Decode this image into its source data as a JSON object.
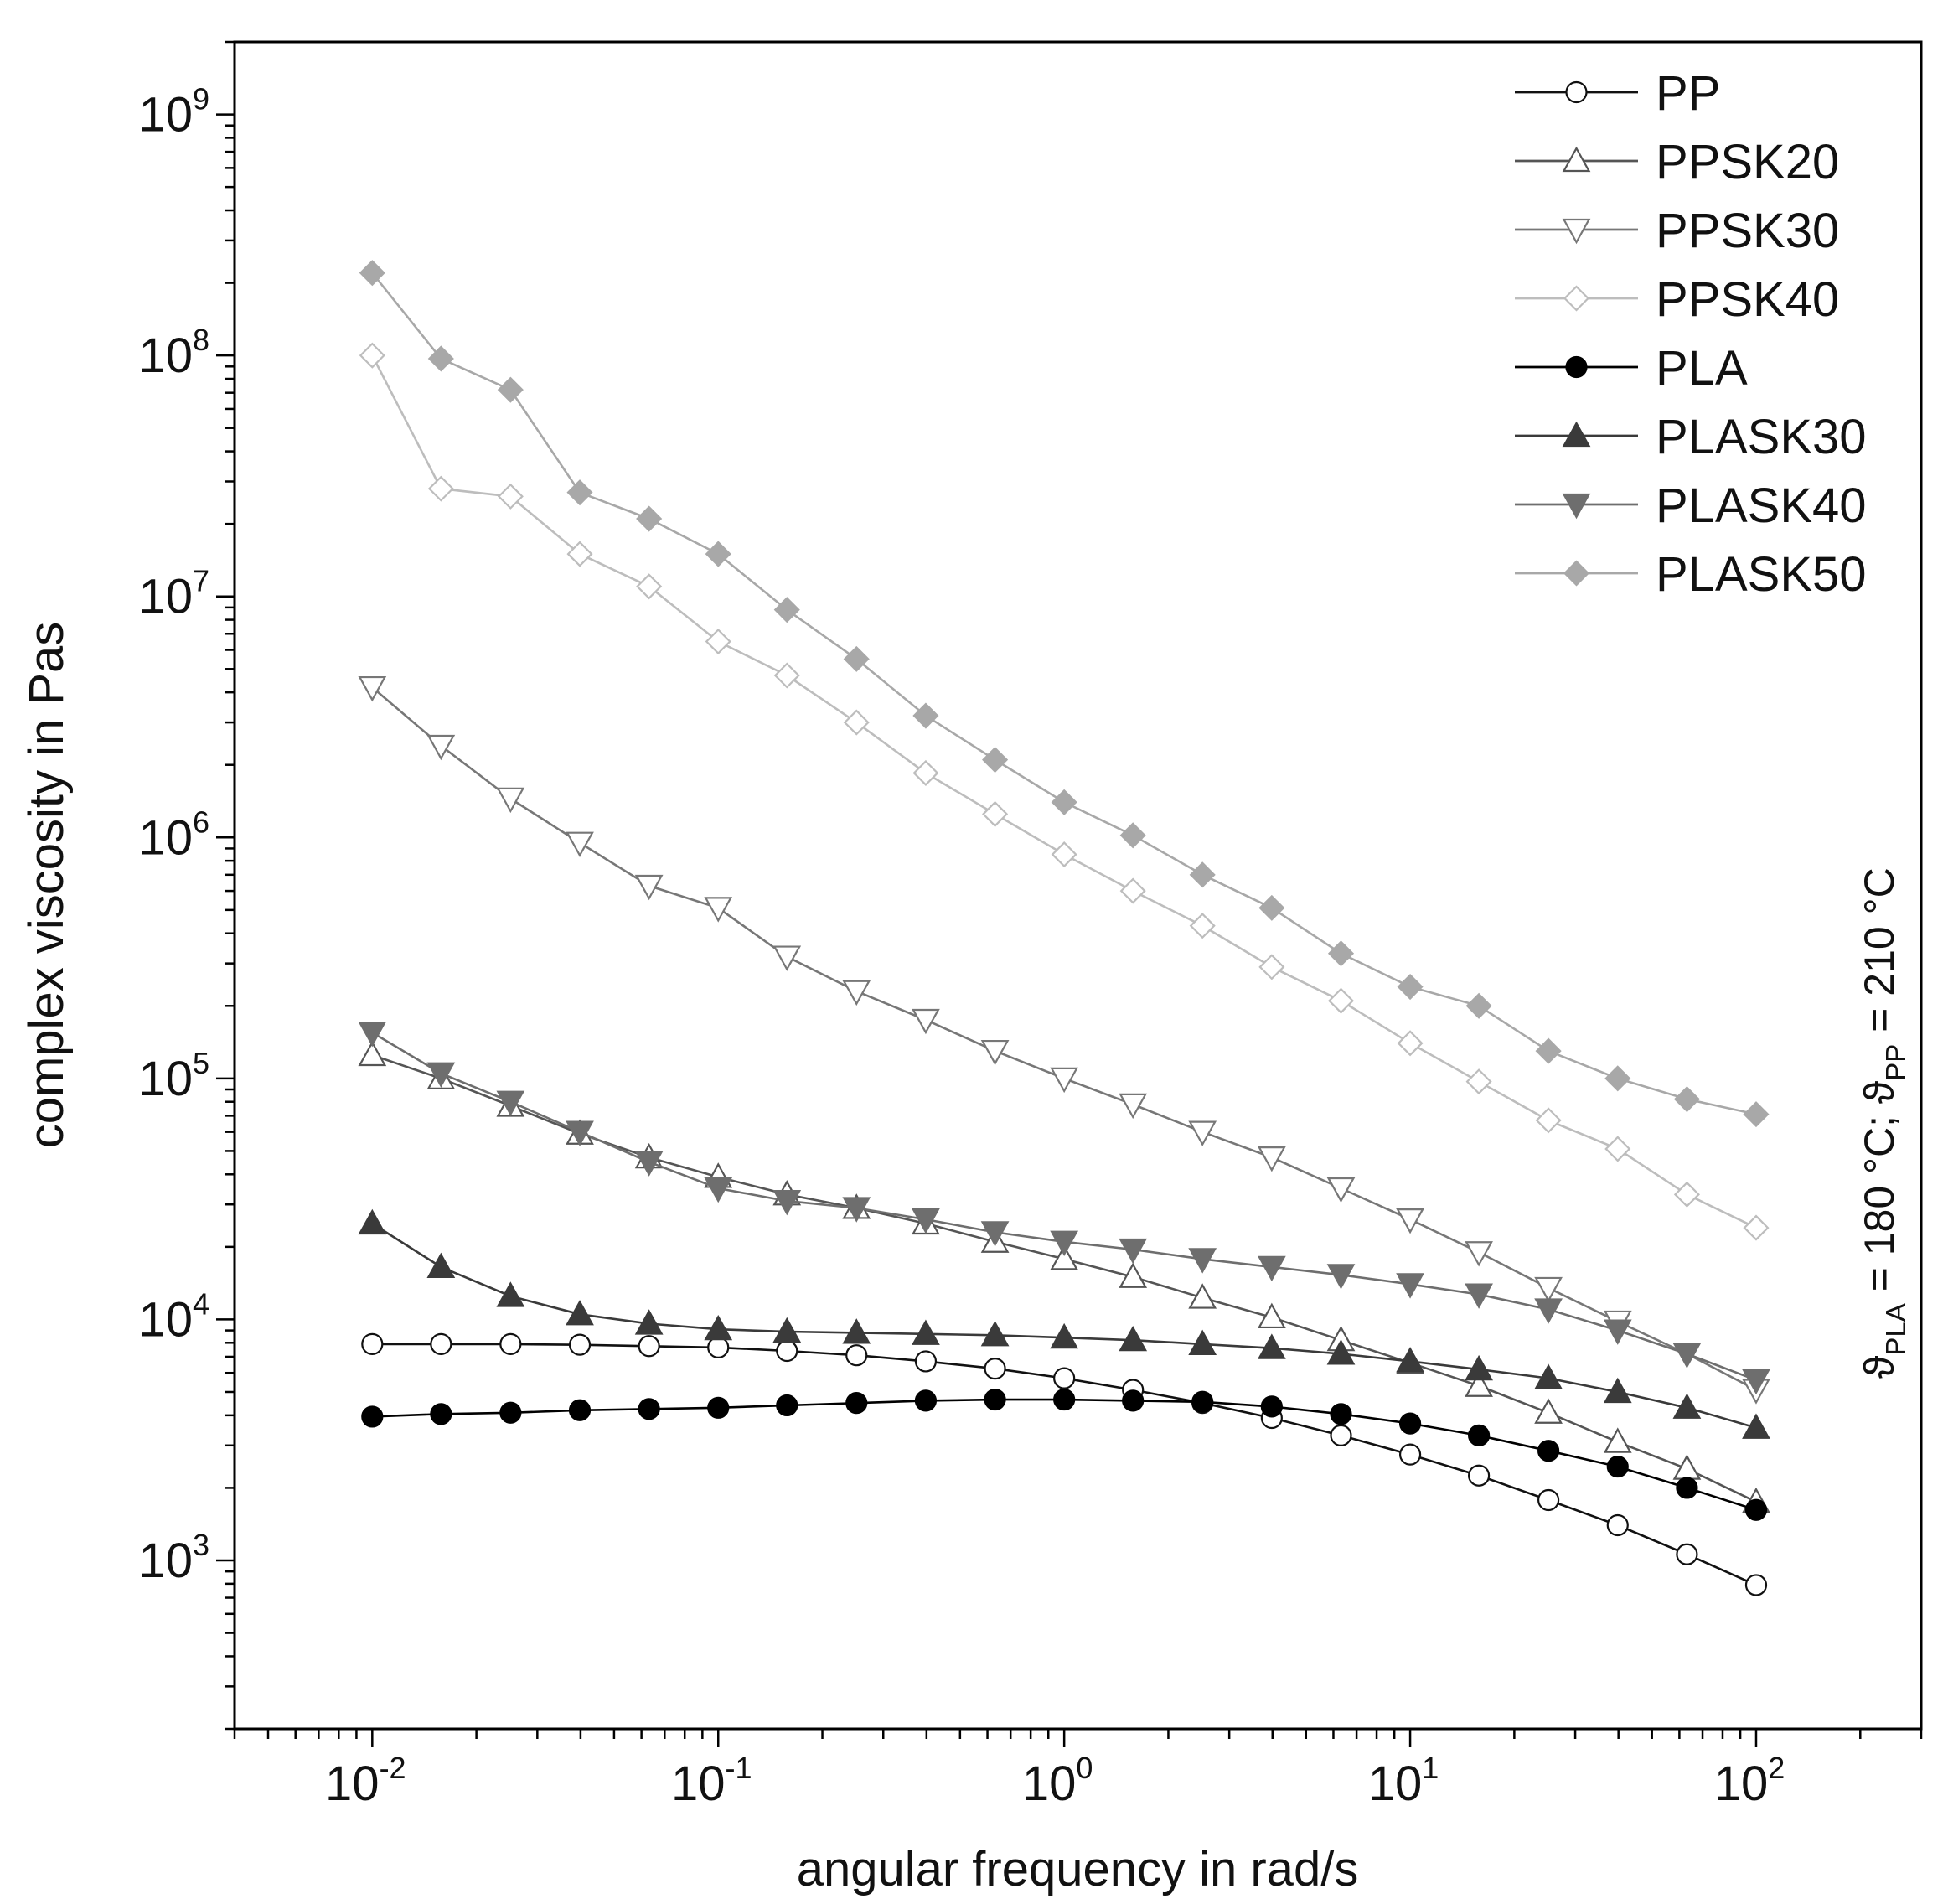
{
  "chart_data": {
    "type": "line",
    "xscale": "log",
    "yscale": "log",
    "xlabel": "angular frequency in rad/s",
    "ylabel": "complex viscosity in Pas",
    "xlim": [
      0.004,
      300
    ],
    "ylim": [
      200,
      2000000000
    ],
    "x_tick_labels": [
      {
        "base": "10",
        "exp": "-2",
        "value": 0.01
      },
      {
        "base": "10",
        "exp": "-1",
        "value": 0.1
      },
      {
        "base": "10",
        "exp": "0",
        "value": 1
      },
      {
        "base": "10",
        "exp": "1",
        "value": 10
      },
      {
        "base": "10",
        "exp": "2",
        "value": 100
      }
    ],
    "y_tick_labels": [
      {
        "base": "10",
        "exp": "3",
        "value": 1000
      },
      {
        "base": "10",
        "exp": "4",
        "value": 10000
      },
      {
        "base": "10",
        "exp": "5",
        "value": 100000
      },
      {
        "base": "10",
        "exp": "6",
        "value": 1000000
      },
      {
        "base": "10",
        "exp": "7",
        "value": 10000000
      },
      {
        "base": "10",
        "exp": "8",
        "value": 100000000
      },
      {
        "base": "10",
        "exp": "9",
        "value": 1000000000
      }
    ],
    "annotation": {
      "symbol": "ϑ",
      "sub1": "PLA",
      "part1": " = 180 °C; ",
      "sub2": "PP",
      "part2": " = 210 °C"
    },
    "legend_position": "top-right",
    "x": [
      0.01,
      0.0158,
      0.0251,
      0.0398,
      0.0631,
      0.1,
      0.158,
      0.251,
      0.398,
      0.631,
      1,
      1.58,
      2.51,
      3.98,
      6.31,
      10,
      15.8,
      25.1,
      39.8,
      63.1,
      100
    ],
    "series": [
      {
        "name": "PP",
        "marker": "circle",
        "filled": false,
        "color": "#111111",
        "values": [
          7900,
          7900,
          7900,
          7850,
          7750,
          7650,
          7400,
          7100,
          6700,
          6250,
          5700,
          5100,
          4500,
          3900,
          3300,
          2750,
          2250,
          1780,
          1400,
          1060,
          790
        ]
      },
      {
        "name": "PPSK20",
        "marker": "triangle-up",
        "filled": false,
        "color": "#555555",
        "values": [
          125000,
          100000,
          77000,
          59000,
          47000,
          39000,
          33000,
          29000,
          25000,
          21000,
          17800,
          15000,
          12300,
          10200,
          8200,
          6600,
          5300,
          4100,
          3100,
          2400,
          1750
        ]
      },
      {
        "name": "PPSK30",
        "marker": "triangle-down",
        "filled": false,
        "color": "#777777",
        "values": [
          4200000,
          2400000,
          1450000,
          950000,
          630000,
          510000,
          320000,
          230000,
          175000,
          130000,
          100000,
          78000,
          60000,
          47000,
          35000,
          26000,
          19000,
          13500,
          9800,
          7200,
          5100
        ]
      },
      {
        "name": "PPSK40",
        "marker": "diamond",
        "filled": false,
        "color": "#bdbdbd",
        "values": [
          100000000,
          28000000,
          26000000,
          15000000,
          11000000,
          6500000,
          4700000,
          3000000,
          1850000,
          1250000,
          850000,
          600000,
          430000,
          290000,
          210000,
          140000,
          97000,
          67000,
          51000,
          33000,
          24000
        ]
      },
      {
        "name": "PLA",
        "marker": "circle",
        "filled": true,
        "color": "#000000",
        "values": [
          3950,
          4050,
          4100,
          4200,
          4250,
          4300,
          4400,
          4500,
          4600,
          4650,
          4650,
          4600,
          4550,
          4350,
          4050,
          3700,
          3300,
          2850,
          2450,
          2000,
          1620
        ]
      },
      {
        "name": "PLASK30",
        "marker": "triangle-up",
        "filled": true,
        "color": "#3a3a3a",
        "values": [
          25000,
          16500,
          12500,
          10500,
          9600,
          9100,
          8900,
          8800,
          8700,
          8600,
          8400,
          8200,
          7900,
          7600,
          7200,
          6700,
          6200,
          5700,
          5000,
          4300,
          3550
        ]
      },
      {
        "name": "PLASK40",
        "marker": "triangle-down",
        "filled": true,
        "color": "#6e6e6e",
        "values": [
          155000,
          105000,
          80000,
          60000,
          45000,
          35000,
          31000,
          29000,
          26000,
          23000,
          21000,
          19500,
          17800,
          16500,
          15300,
          14000,
          12700,
          11000,
          9000,
          7200,
          5600
        ]
      },
      {
        "name": "PLASK50",
        "marker": "diamond",
        "filled": true,
        "color": "#a8a8a8",
        "values": [
          220000000,
          97000000,
          72000000,
          27000000,
          21000000,
          15000000,
          8800000,
          5500000,
          3200000,
          2100000,
          1400000,
          1020000,
          700000,
          510000,
          330000,
          240000,
          200000,
          130000,
          100000,
          82000,
          71000
        ]
      }
    ]
  }
}
